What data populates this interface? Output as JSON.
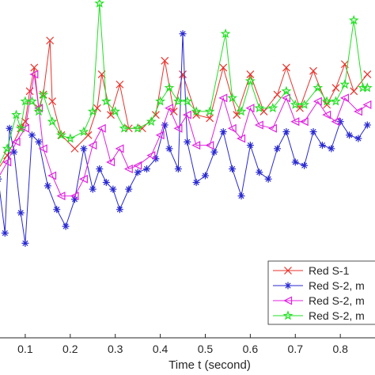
{
  "chart_data": {
    "type": "line",
    "xlabel": "Time t (second)",
    "ylabel": "",
    "title": "",
    "xlim": [
      0.0,
      0.87
    ],
    "ylim": [
      0,
      100
    ],
    "x_ticks": [
      "0.1",
      "0.2",
      "0.3",
      "0.4",
      "0.5",
      "0.6",
      "0.7",
      "0.8"
    ],
    "grid": false,
    "legend_position": "bottom-right",
    "series": [
      {
        "name": "Red S-1",
        "color": "#e8322a",
        "marker": "x",
        "points": [
          [
            0.0,
            42
          ],
          [
            0.03,
            48
          ],
          [
            0.06,
            54
          ],
          [
            0.09,
            62
          ],
          [
            0.1,
            64
          ],
          [
            0.11,
            73
          ],
          [
            0.12,
            80
          ],
          [
            0.13,
            68
          ],
          [
            0.14,
            72
          ],
          [
            0.155,
            88
          ],
          [
            0.16,
            70
          ],
          [
            0.18,
            60
          ],
          [
            0.21,
            56
          ],
          [
            0.24,
            60
          ],
          [
            0.26,
            68
          ],
          [
            0.27,
            78
          ],
          [
            0.29,
            66
          ],
          [
            0.31,
            75
          ],
          [
            0.33,
            62
          ],
          [
            0.36,
            62
          ],
          [
            0.39,
            66
          ],
          [
            0.41,
            82
          ],
          [
            0.43,
            67
          ],
          [
            0.45,
            78
          ],
          [
            0.48,
            66
          ],
          [
            0.51,
            65
          ],
          [
            0.54,
            80
          ],
          [
            0.57,
            66
          ],
          [
            0.6,
            78
          ],
          [
            0.63,
            67
          ],
          [
            0.66,
            72
          ],
          [
            0.68,
            80
          ],
          [
            0.71,
            68
          ],
          [
            0.74,
            79
          ],
          [
            0.77,
            69
          ],
          [
            0.79,
            74
          ],
          [
            0.81,
            81
          ],
          [
            0.83,
            73
          ],
          [
            0.86,
            78
          ]
        ]
      },
      {
        "name": "Red S-2, m",
        "color": "#2828d0",
        "marker": "asterisk",
        "points": [
          [
            0.0,
            34
          ],
          [
            0.02,
            42
          ],
          [
            0.04,
            47
          ],
          [
            0.055,
            31
          ],
          [
            0.065,
            62
          ],
          [
            0.075,
            55
          ],
          [
            0.09,
            37
          ],
          [
            0.1,
            28
          ],
          [
            0.115,
            60
          ],
          [
            0.13,
            58
          ],
          [
            0.15,
            45
          ],
          [
            0.17,
            38
          ],
          [
            0.19,
            33
          ],
          [
            0.21,
            41
          ],
          [
            0.23,
            56
          ],
          [
            0.25,
            44
          ],
          [
            0.265,
            50
          ],
          [
            0.28,
            46
          ],
          [
            0.295,
            44
          ],
          [
            0.31,
            38
          ],
          [
            0.33,
            44
          ],
          [
            0.35,
            49
          ],
          [
            0.37,
            50
          ],
          [
            0.39,
            53
          ],
          [
            0.41,
            63
          ],
          [
            0.42,
            56
          ],
          [
            0.44,
            50
          ],
          [
            0.45,
            90
          ],
          [
            0.46,
            58
          ],
          [
            0.48,
            46
          ],
          [
            0.5,
            48
          ],
          [
            0.52,
            55
          ],
          [
            0.54,
            61
          ],
          [
            0.56,
            50
          ],
          [
            0.58,
            42
          ],
          [
            0.6,
            57
          ],
          [
            0.62,
            49
          ],
          [
            0.64,
            47
          ],
          [
            0.66,
            56
          ],
          [
            0.68,
            61
          ],
          [
            0.7,
            52
          ],
          [
            0.72,
            51
          ],
          [
            0.74,
            61
          ],
          [
            0.76,
            57
          ],
          [
            0.78,
            56
          ],
          [
            0.8,
            64
          ],
          [
            0.82,
            60
          ],
          [
            0.84,
            59
          ],
          [
            0.86,
            63
          ]
        ]
      },
      {
        "name": "Red S-2, m",
        "color": "#e020e0",
        "marker": "triangle-left",
        "points": [
          [
            0.0,
            38
          ],
          [
            0.03,
            45
          ],
          [
            0.06,
            52
          ],
          [
            0.08,
            58
          ],
          [
            0.1,
            62
          ],
          [
            0.12,
            78
          ],
          [
            0.13,
            68
          ],
          [
            0.14,
            56
          ],
          [
            0.16,
            48
          ],
          [
            0.18,
            42
          ],
          [
            0.21,
            42
          ],
          [
            0.23,
            47
          ],
          [
            0.25,
            57
          ],
          [
            0.27,
            62
          ],
          [
            0.29,
            52
          ],
          [
            0.31,
            56
          ],
          [
            0.33,
            50
          ],
          [
            0.35,
            51
          ],
          [
            0.38,
            54
          ],
          [
            0.4,
            60
          ],
          [
            0.42,
            68
          ],
          [
            0.44,
            62
          ],
          [
            0.46,
            66
          ],
          [
            0.48,
            57
          ],
          [
            0.51,
            57
          ],
          [
            0.54,
            71
          ],
          [
            0.56,
            62
          ],
          [
            0.58,
            59
          ],
          [
            0.6,
            68
          ],
          [
            0.62,
            63
          ],
          [
            0.65,
            62
          ],
          [
            0.68,
            71
          ],
          [
            0.7,
            64
          ],
          [
            0.72,
            64
          ],
          [
            0.75,
            70
          ],
          [
            0.77,
            66
          ],
          [
            0.79,
            64
          ],
          [
            0.81,
            71
          ],
          [
            0.84,
            67
          ],
          [
            0.86,
            69
          ]
        ]
      },
      {
        "name": "Red S-2, m",
        "color": "#20e020",
        "marker": "pentagram",
        "points": [
          [
            0.0,
            36
          ],
          [
            0.03,
            48
          ],
          [
            0.06,
            56
          ],
          [
            0.08,
            66
          ],
          [
            0.09,
            62
          ],
          [
            0.1,
            70
          ],
          [
            0.115,
            70
          ],
          [
            0.13,
            67
          ],
          [
            0.14,
            72
          ],
          [
            0.16,
            64
          ],
          [
            0.18,
            60
          ],
          [
            0.2,
            59
          ],
          [
            0.23,
            61
          ],
          [
            0.25,
            67
          ],
          [
            0.265,
            99
          ],
          [
            0.28,
            70
          ],
          [
            0.3,
            67
          ],
          [
            0.32,
            62
          ],
          [
            0.35,
            62
          ],
          [
            0.38,
            64
          ],
          [
            0.4,
            70
          ],
          [
            0.42,
            74
          ],
          [
            0.44,
            70
          ],
          [
            0.46,
            70
          ],
          [
            0.48,
            67
          ],
          [
            0.51,
            67
          ],
          [
            0.545,
            90
          ],
          [
            0.56,
            71
          ],
          [
            0.58,
            67
          ],
          [
            0.6,
            76
          ],
          [
            0.62,
            68
          ],
          [
            0.65,
            68
          ],
          [
            0.68,
            73
          ],
          [
            0.7,
            69
          ],
          [
            0.72,
            69
          ],
          [
            0.75,
            74
          ],
          [
            0.77,
            70
          ],
          [
            0.79,
            70
          ],
          [
            0.81,
            75
          ],
          [
            0.83,
            94
          ],
          [
            0.85,
            74
          ],
          [
            0.86,
            74
          ]
        ]
      }
    ]
  }
}
